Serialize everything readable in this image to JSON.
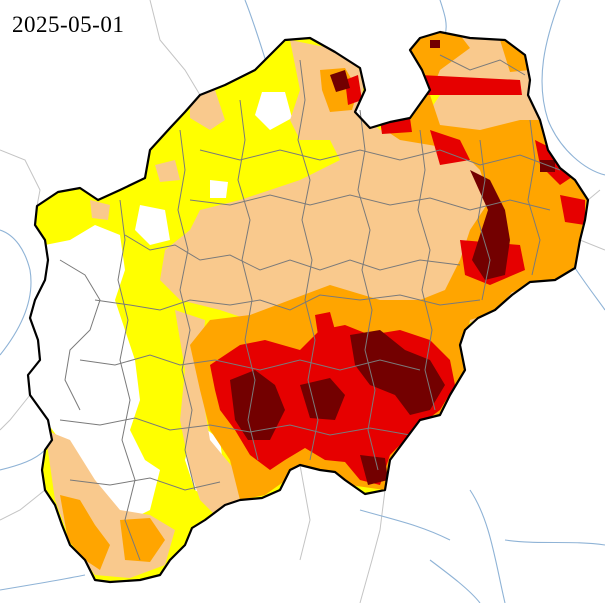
{
  "map": {
    "date": "2025-05-01",
    "colors": {
      "background": "#ffffff",
      "river": "#8fb3d6",
      "neighbor_border": "#c4c4c4",
      "state_border": "#000000",
      "district_border": "#7a7a7a",
      "none": "#ffffff",
      "abnormally_dry": "#ffff00",
      "moderate_drought": "#f9c98d",
      "severe_drought": "#ffa500",
      "extreme_drought": "#e60000",
      "exceptional_drought": "#730000"
    }
  }
}
